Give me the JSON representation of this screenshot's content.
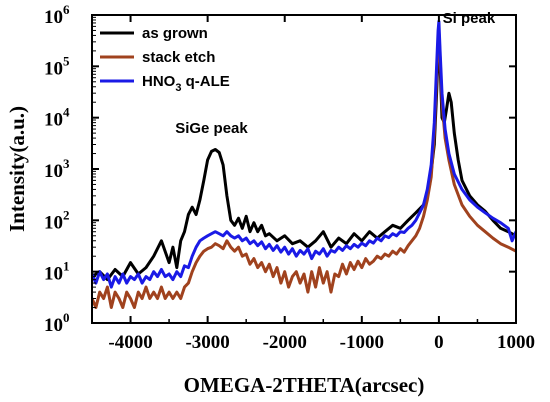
{
  "chart_data": {
    "type": "line",
    "title": "",
    "xlabel": "OMEGA-2THETA(arcsec)",
    "ylabel": "Intensity(a.u.)",
    "xlim": [
      -4500,
      1000
    ],
    "ylim": [
      1,
      1000000
    ],
    "yscale": "log",
    "x_ticks": [
      -4000,
      -3000,
      -2000,
      -1000,
      0,
      1000
    ],
    "x_tick_labels": [
      "-4000",
      "-3000",
      "-2000",
      "-1000",
      "0",
      "1000"
    ],
    "y_ticks": [
      1,
      10,
      100,
      1000,
      10000,
      100000,
      1000000
    ],
    "y_tick_labels": [
      {
        "base": "10",
        "exp": "0"
      },
      {
        "base": "10",
        "exp": "1"
      },
      {
        "base": "10",
        "exp": "2"
      },
      {
        "base": "10",
        "exp": "3"
      },
      {
        "base": "10",
        "exp": "4"
      },
      {
        "base": "10",
        "exp": "5"
      },
      {
        "base": "10",
        "exp": "6"
      }
    ],
    "grid": false,
    "legend_position": "top-left",
    "annotations": [
      {
        "text": "SiGe peak",
        "x": -2950,
        "y": 5000
      },
      {
        "text": "Si peak",
        "x": 0,
        "y": 700000
      }
    ],
    "series": [
      {
        "name": "as grown",
        "legend": {
          "main": "as grown",
          "sub": ""
        },
        "color": "#000000",
        "points": [
          [
            -4500,
            8
          ],
          [
            -4400,
            10
          ],
          [
            -4300,
            7
          ],
          [
            -4200,
            11
          ],
          [
            -4100,
            8
          ],
          [
            -4000,
            15
          ],
          [
            -3900,
            9
          ],
          [
            -3800,
            12
          ],
          [
            -3700,
            20
          ],
          [
            -3600,
            40
          ],
          [
            -3500,
            15
          ],
          [
            -3450,
            30
          ],
          [
            -3400,
            12
          ],
          [
            -3350,
            40
          ],
          [
            -3300,
            60
          ],
          [
            -3250,
            130
          ],
          [
            -3200,
            180
          ],
          [
            -3150,
            130
          ],
          [
            -3100,
            250
          ],
          [
            -3050,
            600
          ],
          [
            -3000,
            1500
          ],
          [
            -2950,
            2200
          ],
          [
            -2900,
            2400
          ],
          [
            -2850,
            2100
          ],
          [
            -2800,
            1200
          ],
          [
            -2750,
            300
          ],
          [
            -2700,
            100
          ],
          [
            -2650,
            80
          ],
          [
            -2600,
            110
          ],
          [
            -2550,
            70
          ],
          [
            -2500,
            120
          ],
          [
            -2450,
            60
          ],
          [
            -2400,
            90
          ],
          [
            -2350,
            60
          ],
          [
            -2300,
            80
          ],
          [
            -2250,
            50
          ],
          [
            -2200,
            55
          ],
          [
            -2100,
            40
          ],
          [
            -2000,
            50
          ],
          [
            -1900,
            35
          ],
          [
            -1800,
            40
          ],
          [
            -1700,
            30
          ],
          [
            -1600,
            40
          ],
          [
            -1500,
            60
          ],
          [
            -1400,
            30
          ],
          [
            -1300,
            45
          ],
          [
            -1200,
            35
          ],
          [
            -1100,
            55
          ],
          [
            -1000,
            40
          ],
          [
            -900,
            60
          ],
          [
            -800,
            45
          ],
          [
            -700,
            60
          ],
          [
            -600,
            80
          ],
          [
            -500,
            70
          ],
          [
            -400,
            100
          ],
          [
            -300,
            140
          ],
          [
            -200,
            200
          ],
          [
            -120,
            500
          ],
          [
            -60,
            3000
          ],
          [
            -30,
            30000
          ],
          [
            -10,
            200000
          ],
          [
            0,
            400000
          ],
          [
            15,
            100000
          ],
          [
            40,
            10000
          ],
          [
            70,
            8000
          ],
          [
            100,
            15000
          ],
          [
            130,
            30000
          ],
          [
            160,
            20000
          ],
          [
            200,
            5000
          ],
          [
            250,
            1500
          ],
          [
            300,
            600
          ],
          [
            400,
            300
          ],
          [
            500,
            200
          ],
          [
            600,
            150
          ],
          [
            700,
            100
          ],
          [
            800,
            70
          ],
          [
            900,
            60
          ],
          [
            1000,
            50
          ]
        ]
      },
      {
        "name": "stack etch",
        "legend": {
          "main": "stack etch",
          "sub": ""
        },
        "color": "#a0421e",
        "points": [
          [
            -4500,
            3
          ],
          [
            -4450,
            2
          ],
          [
            -4400,
            4
          ],
          [
            -4350,
            3
          ],
          [
            -4300,
            5
          ],
          [
            -4250,
            2
          ],
          [
            -4200,
            4
          ],
          [
            -4150,
            3
          ],
          [
            -4100,
            2
          ],
          [
            -4050,
            4
          ],
          [
            -4000,
            3
          ],
          [
            -3950,
            2
          ],
          [
            -3900,
            4
          ],
          [
            -3850,
            3
          ],
          [
            -3800,
            5
          ],
          [
            -3750,
            3
          ],
          [
            -3700,
            4
          ],
          [
            -3650,
            3
          ],
          [
            -3600,
            5
          ],
          [
            -3550,
            3
          ],
          [
            -3500,
            4
          ],
          [
            -3450,
            3
          ],
          [
            -3400,
            4
          ],
          [
            -3350,
            3
          ],
          [
            -3300,
            5
          ],
          [
            -3250,
            6
          ],
          [
            -3200,
            10
          ],
          [
            -3150,
            15
          ],
          [
            -3100,
            20
          ],
          [
            -3050,
            25
          ],
          [
            -3000,
            28
          ],
          [
            -2950,
            30
          ],
          [
            -2900,
            35
          ],
          [
            -2850,
            32
          ],
          [
            -2800,
            28
          ],
          [
            -2750,
            40
          ],
          [
            -2700,
            30
          ],
          [
            -2650,
            25
          ],
          [
            -2600,
            30
          ],
          [
            -2550,
            20
          ],
          [
            -2500,
            22
          ],
          [
            -2450,
            14
          ],
          [
            -2400,
            18
          ],
          [
            -2350,
            12
          ],
          [
            -2300,
            15
          ],
          [
            -2250,
            10
          ],
          [
            -2200,
            14
          ],
          [
            -2150,
            8
          ],
          [
            -2100,
            12
          ],
          [
            -2050,
            6
          ],
          [
            -2000,
            10
          ],
          [
            -1950,
            5
          ],
          [
            -1900,
            8
          ],
          [
            -1850,
            10
          ],
          [
            -1800,
            6
          ],
          [
            -1750,
            9
          ],
          [
            -1700,
            4
          ],
          [
            -1650,
            10
          ],
          [
            -1600,
            5
          ],
          [
            -1550,
            12
          ],
          [
            -1500,
            6
          ],
          [
            -1450,
            10
          ],
          [
            -1400,
            4
          ],
          [
            -1350,
            9
          ],
          [
            -1300,
            8
          ],
          [
            -1250,
            14
          ],
          [
            -1200,
            9
          ],
          [
            -1150,
            15
          ],
          [
            -1100,
            11
          ],
          [
            -1050,
            16
          ],
          [
            -1000,
            12
          ],
          [
            -950,
            18
          ],
          [
            -900,
            14
          ],
          [
            -850,
            16
          ],
          [
            -800,
            20
          ],
          [
            -750,
            18
          ],
          [
            -700,
            22
          ],
          [
            -650,
            20
          ],
          [
            -600,
            25
          ],
          [
            -550,
            22
          ],
          [
            -500,
            28
          ],
          [
            -450,
            24
          ],
          [
            -400,
            32
          ],
          [
            -350,
            40
          ],
          [
            -300,
            50
          ],
          [
            -250,
            70
          ],
          [
            -200,
            120
          ],
          [
            -150,
            250
          ],
          [
            -100,
            700
          ],
          [
            -60,
            5000
          ],
          [
            -30,
            60000
          ],
          [
            -10,
            300000
          ],
          [
            0,
            500000
          ],
          [
            15,
            150000
          ],
          [
            40,
            20000
          ],
          [
            80,
            4000
          ],
          [
            130,
            1500
          ],
          [
            200,
            500
          ],
          [
            300,
            200
          ],
          [
            400,
            120
          ],
          [
            500,
            80
          ],
          [
            600,
            60
          ],
          [
            700,
            45
          ],
          [
            800,
            35
          ],
          [
            900,
            30
          ],
          [
            1000,
            25
          ]
        ]
      },
      {
        "name": "HNO3 q-ALE",
        "legend": {
          "main": "HNO",
          "sub": "3",
          "tail": " q-ALE"
        },
        "color": "#1a1ae6",
        "points": [
          [
            -4500,
            9
          ],
          [
            -4450,
            6
          ],
          [
            -4400,
            10
          ],
          [
            -4350,
            7
          ],
          [
            -4300,
            9
          ],
          [
            -4250,
            5
          ],
          [
            -4200,
            8
          ],
          [
            -4150,
            6
          ],
          [
            -4100,
            9
          ],
          [
            -4050,
            6
          ],
          [
            -4000,
            8
          ],
          [
            -3950,
            7
          ],
          [
            -3900,
            9
          ],
          [
            -3850,
            6
          ],
          [
            -3800,
            8
          ],
          [
            -3750,
            7
          ],
          [
            -3700,
            10
          ],
          [
            -3650,
            8
          ],
          [
            -3600,
            11
          ],
          [
            -3550,
            8
          ],
          [
            -3500,
            9
          ],
          [
            -3450,
            7
          ],
          [
            -3400,
            10
          ],
          [
            -3350,
            8
          ],
          [
            -3300,
            13
          ],
          [
            -3250,
            12
          ],
          [
            -3200,
            20
          ],
          [
            -3150,
            30
          ],
          [
            -3100,
            40
          ],
          [
            -3050,
            45
          ],
          [
            -3000,
            50
          ],
          [
            -2950,
            55
          ],
          [
            -2900,
            60
          ],
          [
            -2850,
            55
          ],
          [
            -2800,
            50
          ],
          [
            -2750,
            60
          ],
          [
            -2700,
            50
          ],
          [
            -2650,
            45
          ],
          [
            -2600,
            50
          ],
          [
            -2550,
            40
          ],
          [
            -2500,
            45
          ],
          [
            -2450,
            35
          ],
          [
            -2400,
            40
          ],
          [
            -2350,
            32
          ],
          [
            -2300,
            38
          ],
          [
            -2250,
            28
          ],
          [
            -2200,
            34
          ],
          [
            -2150,
            26
          ],
          [
            -2100,
            32
          ],
          [
            -2050,
            24
          ],
          [
            -2000,
            30
          ],
          [
            -1950,
            22
          ],
          [
            -1900,
            28
          ],
          [
            -1850,
            20
          ],
          [
            -1800,
            26
          ],
          [
            -1750,
            22
          ],
          [
            -1700,
            28
          ],
          [
            -1650,
            18
          ],
          [
            -1600,
            25
          ],
          [
            -1550,
            22
          ],
          [
            -1500,
            28
          ],
          [
            -1450,
            20
          ],
          [
            -1400,
            26
          ],
          [
            -1350,
            24
          ],
          [
            -1300,
            30
          ],
          [
            -1250,
            26
          ],
          [
            -1200,
            32
          ],
          [
            -1150,
            28
          ],
          [
            -1100,
            34
          ],
          [
            -1050,
            30
          ],
          [
            -1000,
            36
          ],
          [
            -950,
            32
          ],
          [
            -900,
            40
          ],
          [
            -850,
            36
          ],
          [
            -800,
            45
          ],
          [
            -750,
            40
          ],
          [
            -700,
            50
          ],
          [
            -650,
            46
          ],
          [
            -600,
            55
          ],
          [
            -550,
            50
          ],
          [
            -500,
            60
          ],
          [
            -450,
            58
          ],
          [
            -400,
            70
          ],
          [
            -350,
            80
          ],
          [
            -300,
            100
          ],
          [
            -250,
            140
          ],
          [
            -200,
            200
          ],
          [
            -150,
            400
          ],
          [
            -100,
            1200
          ],
          [
            -60,
            8000
          ],
          [
            -30,
            100000
          ],
          [
            -10,
            500000
          ],
          [
            0,
            750000
          ],
          [
            15,
            200000
          ],
          [
            40,
            30000
          ],
          [
            80,
            6000
          ],
          [
            130,
            2000
          ],
          [
            200,
            800
          ],
          [
            300,
            400
          ],
          [
            400,
            250
          ],
          [
            500,
            180
          ],
          [
            600,
            140
          ],
          [
            700,
            110
          ],
          [
            800,
            90
          ],
          [
            900,
            70
          ],
          [
            950,
            40
          ],
          [
            1000,
            60
          ]
        ]
      }
    ]
  }
}
